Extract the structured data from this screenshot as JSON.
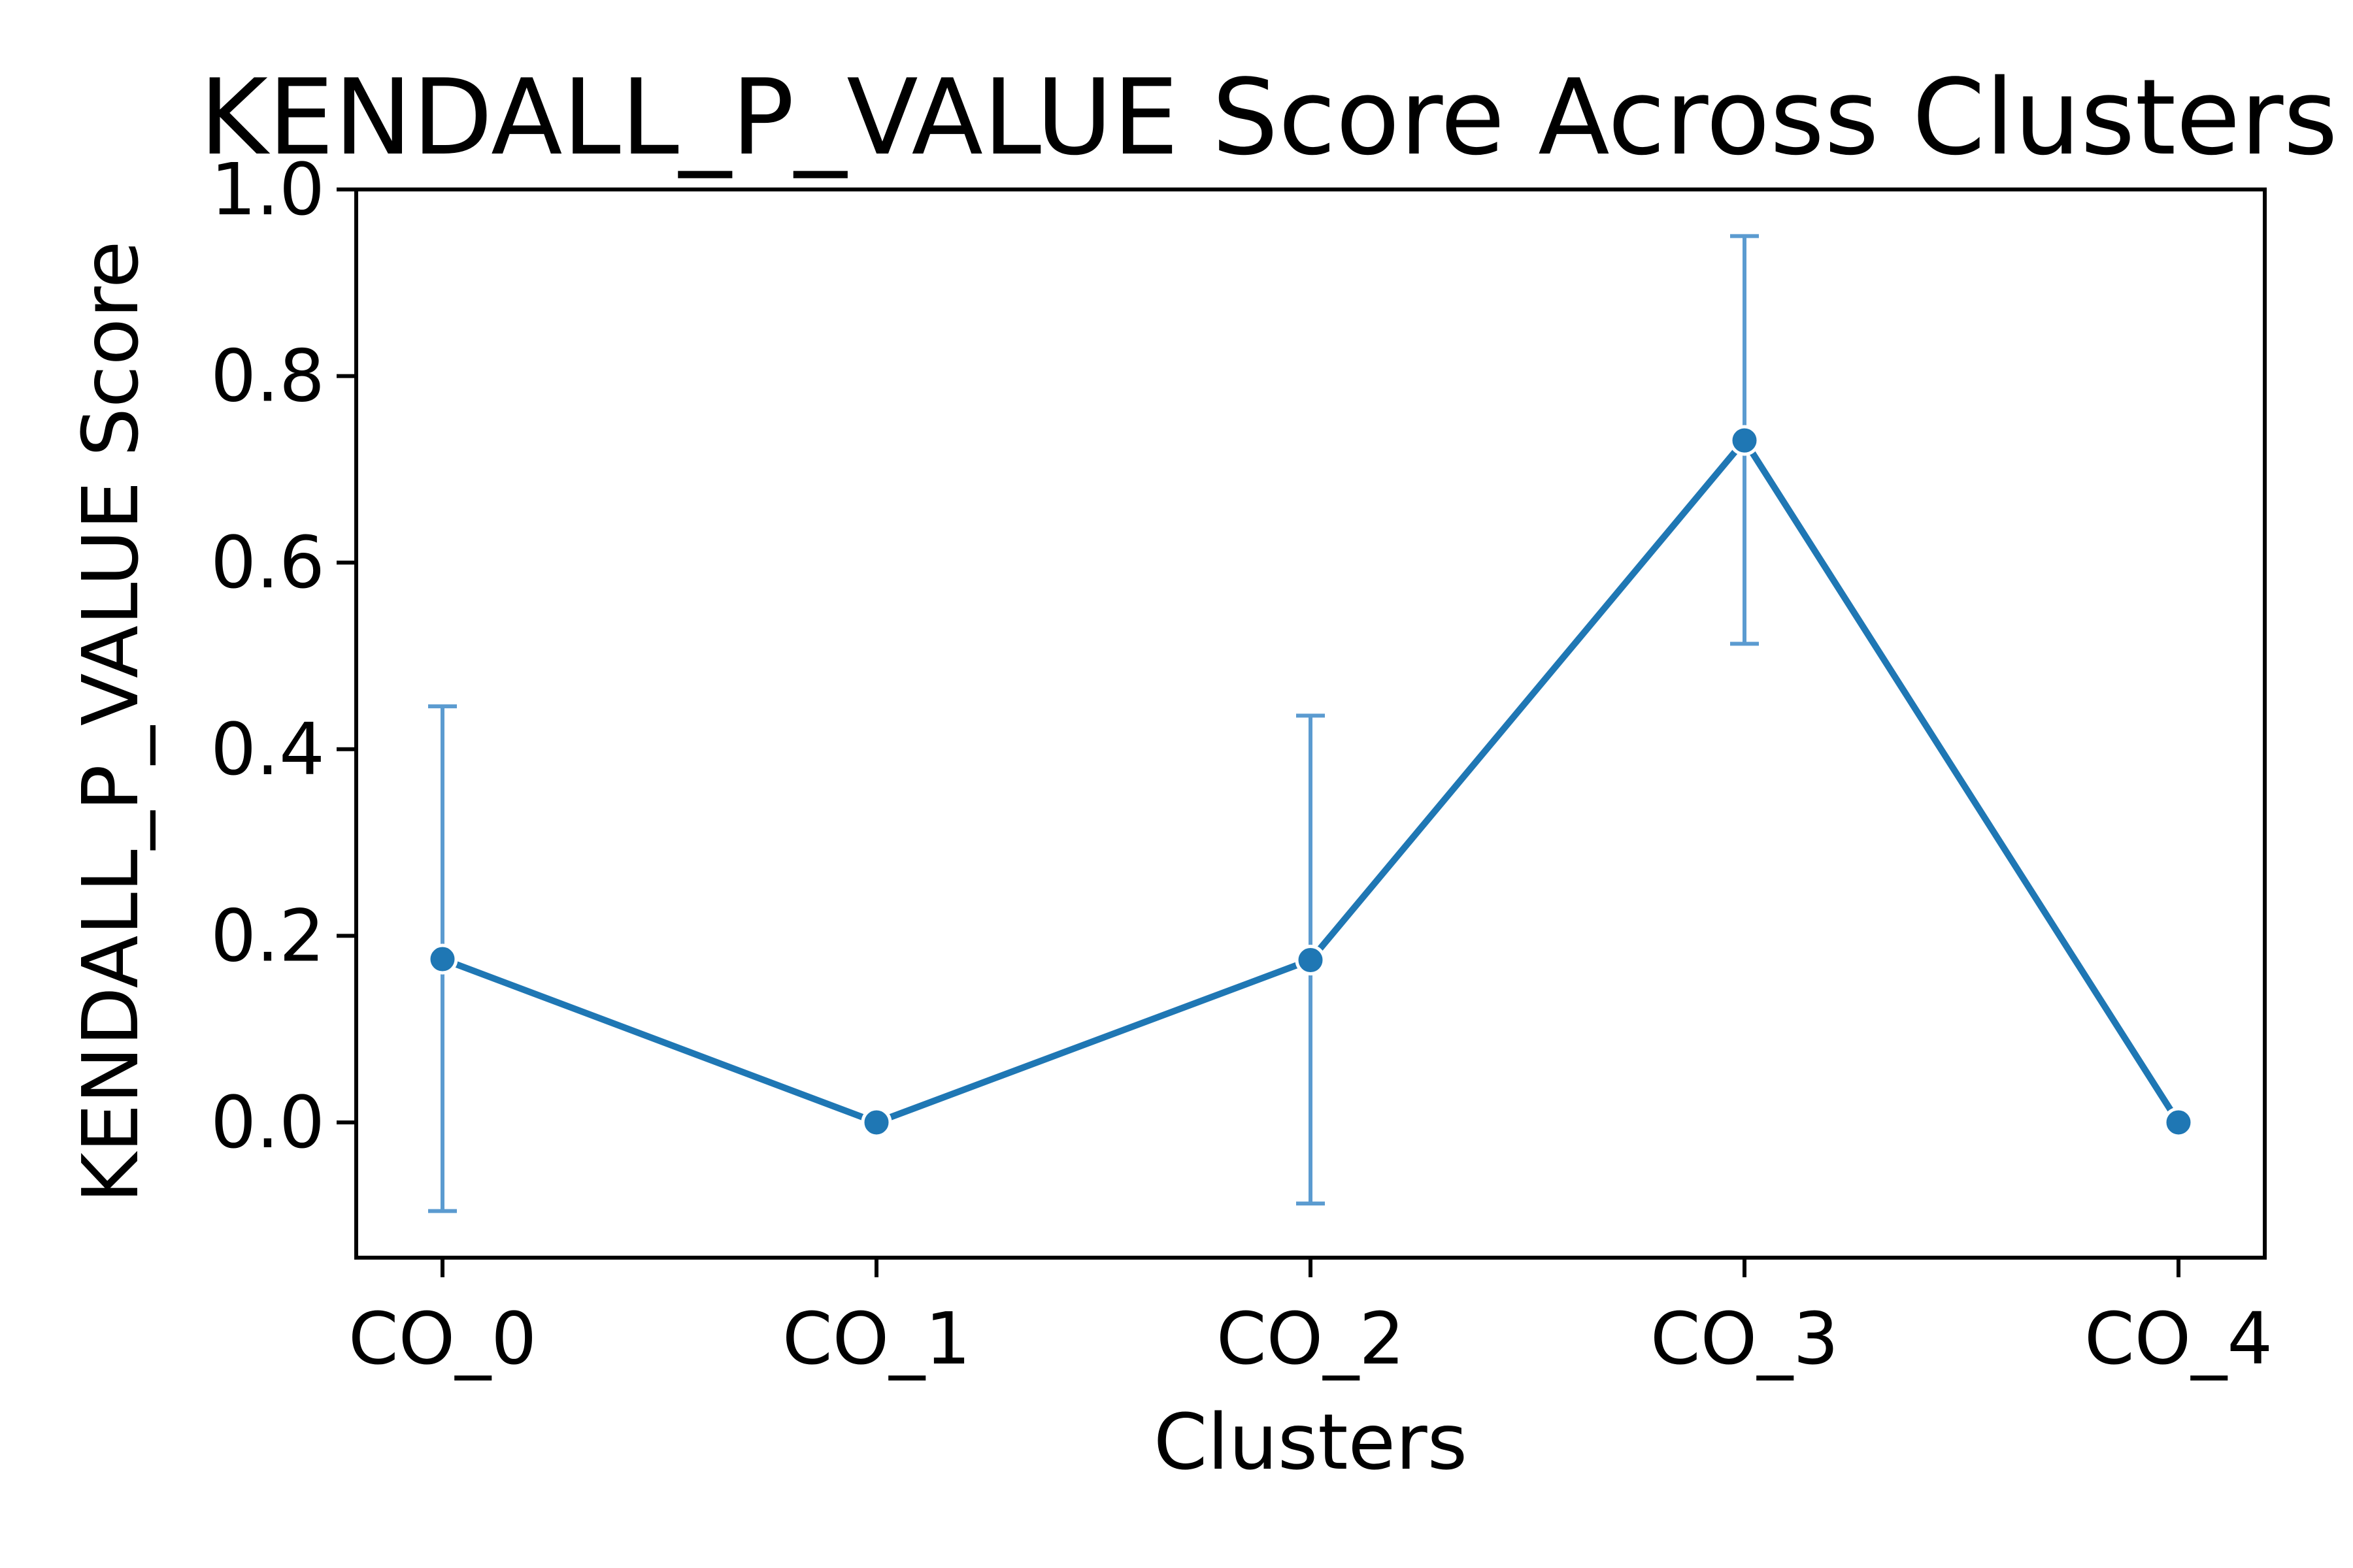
{
  "chart_data": {
    "type": "line",
    "title": "KENDALL_P_VALUE Score Across Clusters",
    "xlabel": "Clusters",
    "ylabel": "KENDALL_P_VALUE Score",
    "categories": [
      "CO_0",
      "CO_1",
      "CO_2",
      "CO_3",
      "CO_4"
    ],
    "series": [
      {
        "values": [
          0.175,
          0.0,
          0.174,
          0.731,
          0.0
        ],
        "error_low": [
          -0.095,
          0.0,
          -0.087,
          0.513,
          0.0
        ],
        "error_high": [
          0.446,
          0.0,
          0.436,
          0.95,
          0.0
        ],
        "color": "#1f77b4"
      }
    ],
    "ylim": [
      -0.145,
      1.0
    ],
    "yticks": [
      0.0,
      0.2,
      0.4,
      0.6,
      0.8,
      1.0
    ],
    "ytick_labels": [
      "0.0",
      "0.2",
      "0.4",
      "0.6",
      "0.8",
      "1.0"
    ],
    "grid": false,
    "legend": "none",
    "colors": {
      "line": "#1f77b4",
      "error_bar": "#5b9bd0",
      "axes": "#000000"
    }
  }
}
